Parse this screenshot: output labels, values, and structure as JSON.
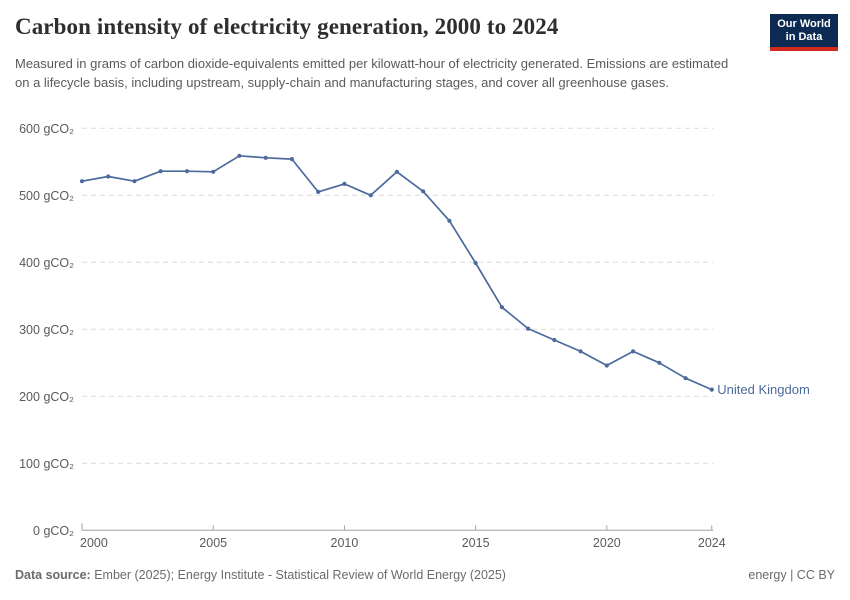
{
  "header": {
    "title": "Carbon intensity of electricity generation, 2000 to 2024",
    "subtitle": "Measured in grams of carbon dioxide-equivalents emitted per kilowatt-hour of electricity generated. Emissions are estimated on a lifecycle basis, including upstream, supply-chain and manufacturing stages, and cover all greenhouse gases."
  },
  "logo": {
    "line1": "Our World",
    "line2": "in Data",
    "bg_color": "#0D2B52",
    "accent_color": "#D2281E"
  },
  "chart_data": {
    "type": "line",
    "title": "Carbon intensity of electricity generation, 2000 to 2024",
    "x": [
      2000,
      2001,
      2002,
      2003,
      2004,
      2005,
      2006,
      2007,
      2008,
      2009,
      2010,
      2011,
      2012,
      2013,
      2014,
      2015,
      2016,
      2017,
      2018,
      2019,
      2020,
      2021,
      2022,
      2023,
      2024
    ],
    "series": [
      {
        "name": "United Kingdom",
        "color": "#4C6A9C",
        "values": [
          521,
          528,
          521,
          536,
          536,
          535,
          559,
          556,
          554,
          505,
          517,
          500,
          535,
          506,
          462,
          399,
          333,
          301,
          284,
          267,
          246,
          267,
          250,
          227,
          210
        ]
      }
    ],
    "unit": "gCO₂",
    "ylim": [
      0,
      600
    ],
    "yticks": [
      0,
      100,
      200,
      300,
      400,
      500,
      600
    ],
    "ytick_label_format": "{v} gCO₂",
    "xticks": [
      2000,
      2005,
      2010,
      2015,
      2020,
      2024
    ],
    "grid": "horizontal-dashed",
    "legend_position": "end-of-line",
    "colors": {
      "gridline": "#dcdcdc",
      "axis": "#a3a3a3",
      "tick_label": "#5b5b5b"
    }
  },
  "footer": {
    "datasource_label": "Data source:",
    "datasource_text": " Ember (2025); Energy Institute - Statistical Review of World Energy (2025)",
    "license": "energy | CC BY"
  }
}
